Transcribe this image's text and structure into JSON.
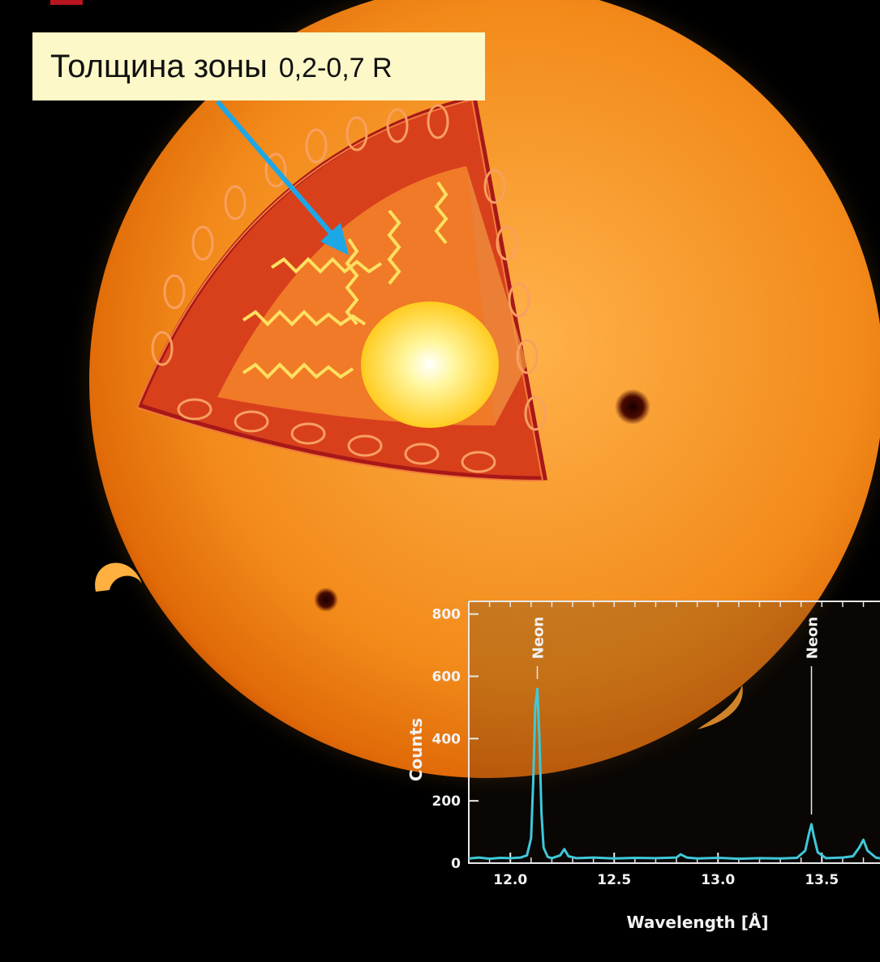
{
  "callout": {
    "text": "Толщина зоны",
    "value": "0,2-0,7 R"
  },
  "colors": {
    "callout_background": "#fdf8c8",
    "arrow": "#1ea7e6",
    "spectrum_line": "#3fc8d8",
    "sun_orange": "#f28a1a",
    "background": "#000000"
  },
  "chart_data": {
    "type": "line",
    "xlabel": "Wavelength [Å]",
    "ylabel": "Counts",
    "xlim": [
      11.8,
      13.78
    ],
    "ylim": [
      0,
      820
    ],
    "xticks": [
      12.0,
      12.5,
      13.0,
      13.5
    ],
    "xtick_labels": [
      "12.0",
      "12.5",
      "13.0",
      "13.5"
    ],
    "yticks": [
      0,
      200,
      400,
      600,
      800
    ],
    "ytick_labels": [
      "0",
      "200",
      "400",
      "600",
      "800"
    ],
    "grid": false,
    "annotations": [
      {
        "label": "Neon",
        "x": 12.13
      },
      {
        "label": "Neon",
        "x": 13.45
      }
    ],
    "series": [
      {
        "x": [
          11.8,
          11.85,
          11.9,
          11.95,
          12.0,
          12.05,
          12.08,
          12.1,
          12.11,
          12.12,
          12.13,
          12.14,
          12.15,
          12.16,
          12.18,
          12.2,
          12.24,
          12.26,
          12.28,
          12.32,
          12.4,
          12.5,
          12.6,
          12.7,
          12.8,
          12.82,
          12.85,
          12.9,
          13.0,
          13.1,
          13.2,
          13.3,
          13.38,
          13.42,
          13.44,
          13.45,
          13.46,
          13.48,
          13.52,
          13.6,
          13.65,
          13.68,
          13.7,
          13.72,
          13.76,
          13.78
        ],
        "y": [
          15,
          18,
          14,
          17,
          16,
          18,
          25,
          80,
          260,
          500,
          560,
          400,
          160,
          50,
          20,
          16,
          25,
          45,
          22,
          16,
          18,
          15,
          17,
          16,
          18,
          28,
          18,
          15,
          17,
          14,
          16,
          15,
          17,
          40,
          100,
          125,
          90,
          35,
          16,
          18,
          22,
          50,
          75,
          40,
          18,
          15
        ]
      }
    ]
  }
}
